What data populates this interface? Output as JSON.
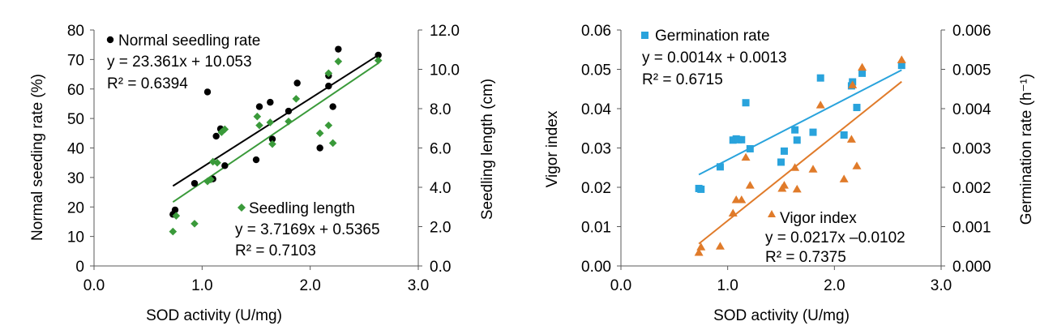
{
  "chart_data": [
    {
      "type": "scatter",
      "xlabel": "SOD activity (U/mg)",
      "ylabel": "Normal seeding rate (%)",
      "y2label": "Seedling length (cm)",
      "xlim": [
        0,
        3
      ],
      "ylim": [
        0,
        80
      ],
      "y2lim": [
        0,
        12
      ],
      "x_ticks": [
        "0.0",
        "1.0",
        "2.0",
        "3.0"
      ],
      "y_ticks": [
        "0",
        "10",
        "20",
        "30",
        "40",
        "50",
        "60",
        "70",
        "80"
      ],
      "y2_ticks": [
        "0.0",
        "2.0",
        "4.0",
        "6.0",
        "8.0",
        "10.0",
        "12.0"
      ],
      "grid": false,
      "series": [
        {
          "name": "Normal seedling rate",
          "axis": "left",
          "marker": "circle",
          "color": "#000000",
          "equation": "y = 23.361x + 10.053",
          "r2": "R² = 0.6394",
          "trend": {
            "slope": 23.361,
            "intercept": 10.053,
            "x_range": [
              0.73,
              2.63
            ]
          },
          "points": [
            [
              0.73,
              17.5
            ],
            [
              0.75,
              19
            ],
            [
              0.93,
              28
            ],
            [
              1.05,
              59
            ],
            [
              1.1,
              29.5
            ],
            [
              1.13,
              44
            ],
            [
              1.17,
              46.5
            ],
            [
              1.21,
              34
            ],
            [
              1.5,
              36
            ],
            [
              1.53,
              54
            ],
            [
              1.63,
              55.5
            ],
            [
              1.65,
              43
            ],
            [
              1.8,
              52.5
            ],
            [
              1.88,
              62
            ],
            [
              2.09,
              40
            ],
            [
              2.17,
              61
            ],
            [
              2.17,
              64.5
            ],
            [
              2.21,
              54
            ],
            [
              2.26,
              73.5
            ],
            [
              2.63,
              71.5
            ]
          ]
        },
        {
          "name": "Seedling length",
          "axis": "right",
          "marker": "diamond",
          "color": "#3a9a3a",
          "equation": "y = 3.7169x + 0.5365",
          "r2": "R² = 0.7103",
          "trend": {
            "slope": 3.7169,
            "intercept": 0.5365,
            "x_range": [
              0.73,
              2.63
            ]
          },
          "points": [
            [
              0.73,
              1.75
            ],
            [
              0.76,
              2.55
            ],
            [
              0.93,
              2.15
            ],
            [
              1.05,
              4.3
            ],
            [
              1.08,
              4.4
            ],
            [
              1.1,
              5.3
            ],
            [
              1.14,
              5.25
            ],
            [
              1.18,
              6.8
            ],
            [
              1.21,
              6.95
            ],
            [
              1.51,
              7.6
            ],
            [
              1.53,
              7.15
            ],
            [
              1.63,
              7.3
            ],
            [
              1.65,
              6.2
            ],
            [
              1.8,
              7.35
            ],
            [
              1.87,
              8.5
            ],
            [
              2.09,
              6.75
            ],
            [
              2.17,
              7.15
            ],
            [
              2.17,
              9.8
            ],
            [
              2.21,
              6.25
            ],
            [
              2.26,
              10.4
            ],
            [
              2.63,
              10.45
            ]
          ]
        }
      ]
    },
    {
      "type": "scatter",
      "xlabel": "SOD activity (U/mg)",
      "ylabel": "Vigor index",
      "y2label": "Germination rate (h⁻¹)",
      "xlim": [
        0,
        3
      ],
      "ylim": [
        0,
        0.06
      ],
      "y2lim": [
        0,
        0.006
      ],
      "x_ticks": [
        "0.0",
        "1.0",
        "2.0",
        "3.0"
      ],
      "y_ticks": [
        "0.00",
        "0.01",
        "0.02",
        "0.03",
        "0.04",
        "0.05",
        "0.06"
      ],
      "y2_ticks": [
        "0.000",
        "0.001",
        "0.002",
        "0.003",
        "0.004",
        "0.005",
        "0.006"
      ],
      "grid": false,
      "series": [
        {
          "name": "Germination rate",
          "axis": "right",
          "marker": "square",
          "color": "#29a3dc",
          "equation": "y = 0.0014x + 0.0013",
          "r2": "R² = 0.6715",
          "trend": {
            "slope": 0.0014,
            "intercept": 0.0013,
            "x_range": [
              0.73,
              2.63
            ]
          },
          "points": [
            [
              0.73,
              0.00197
            ],
            [
              0.75,
              0.00195
            ],
            [
              0.93,
              0.00252
            ],
            [
              1.05,
              0.0032
            ],
            [
              1.08,
              0.00323
            ],
            [
              1.1,
              0.00321
            ],
            [
              1.13,
              0.00321
            ],
            [
              1.17,
              0.00415
            ],
            [
              1.21,
              0.00298
            ],
            [
              1.5,
              0.00264
            ],
            [
              1.53,
              0.00292
            ],
            [
              1.63,
              0.00346
            ],
            [
              1.65,
              0.0032
            ],
            [
              1.8,
              0.0034
            ],
            [
              1.87,
              0.00478
            ],
            [
              2.09,
              0.00333
            ],
            [
              2.16,
              0.00458
            ],
            [
              2.17,
              0.00468
            ],
            [
              2.21,
              0.00403
            ],
            [
              2.26,
              0.0049
            ],
            [
              2.63,
              0.0051
            ]
          ]
        },
        {
          "name": "Vigor index",
          "axis": "left",
          "marker": "triangle",
          "color": "#e07b2a",
          "equation": "y = 0.0217x –0.0102",
          "r2": "R² = 0.7375",
          "trend": {
            "slope": 0.0217,
            "intercept": -0.0102,
            "x_range": [
              0.73,
              2.63
            ]
          },
          "points": [
            [
              0.73,
              0.0034
            ],
            [
              0.75,
              0.0048
            ],
            [
              0.93,
              0.005
            ],
            [
              1.05,
              0.0134
            ],
            [
              1.08,
              0.0168
            ],
            [
              1.13,
              0.0168
            ],
            [
              1.17,
              0.0276
            ],
            [
              1.21,
              0.0205
            ],
            [
              1.51,
              0.0197
            ],
            [
              1.53,
              0.0205
            ],
            [
              1.63,
              0.025
            ],
            [
              1.65,
              0.0195
            ],
            [
              1.8,
              0.0246
            ],
            [
              1.87,
              0.0409
            ],
            [
              2.09,
              0.0221
            ],
            [
              2.16,
              0.0322
            ],
            [
              2.17,
              0.046
            ],
            [
              2.21,
              0.0254
            ],
            [
              2.26,
              0.0505
            ],
            [
              2.63,
              0.0524
            ]
          ]
        }
      ]
    }
  ]
}
